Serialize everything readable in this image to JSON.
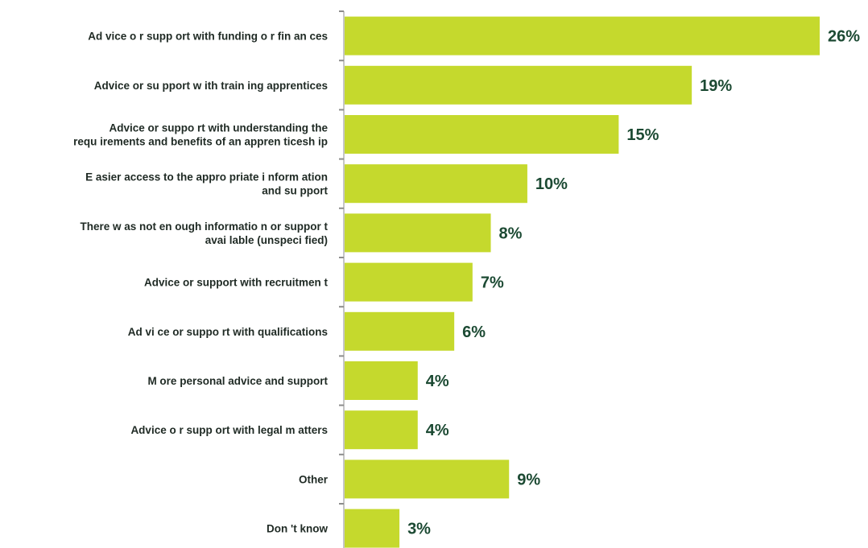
{
  "chart_data": {
    "type": "bar",
    "orientation": "horizontal",
    "title": "",
    "xlabel": "",
    "ylabel": "",
    "bar_color": "#c5d92d",
    "value_label_color": "#1c4a33",
    "value_suffix": "%",
    "xlim": [
      0,
      27
    ],
    "grid": false,
    "categories": [
      [
        "Ad vice o r supp ort with funding o r fin an ces"
      ],
      [
        "Advice or su pport w ith train ing apprentices"
      ],
      [
        "Advice or suppo rt with understanding the",
        "requ irements and benefits of an appren ticesh ip"
      ],
      [
        "E asier access to the appro priate i nform ation",
        "and su pport"
      ],
      [
        "There w as not en ough informatio n or suppor t",
        "avai lable (unspeci fied)"
      ],
      [
        "Advice or support with recruitmen t"
      ],
      [
        "Ad vi ce or suppo rt with qualifications"
      ],
      [
        "M ore personal advice and support"
      ],
      [
        "Advice o r supp ort with legal m atters"
      ],
      [
        "Other"
      ],
      [
        "Don 't know"
      ]
    ],
    "values": [
      26,
      19,
      15,
      10,
      8,
      7,
      6,
      4,
      4,
      9,
      3
    ],
    "value_labels": [
      "26%",
      "19%",
      "15%",
      "10%",
      "8%",
      "7%",
      "6%",
      "4%",
      "4%",
      "9%",
      "3%"
    ]
  }
}
